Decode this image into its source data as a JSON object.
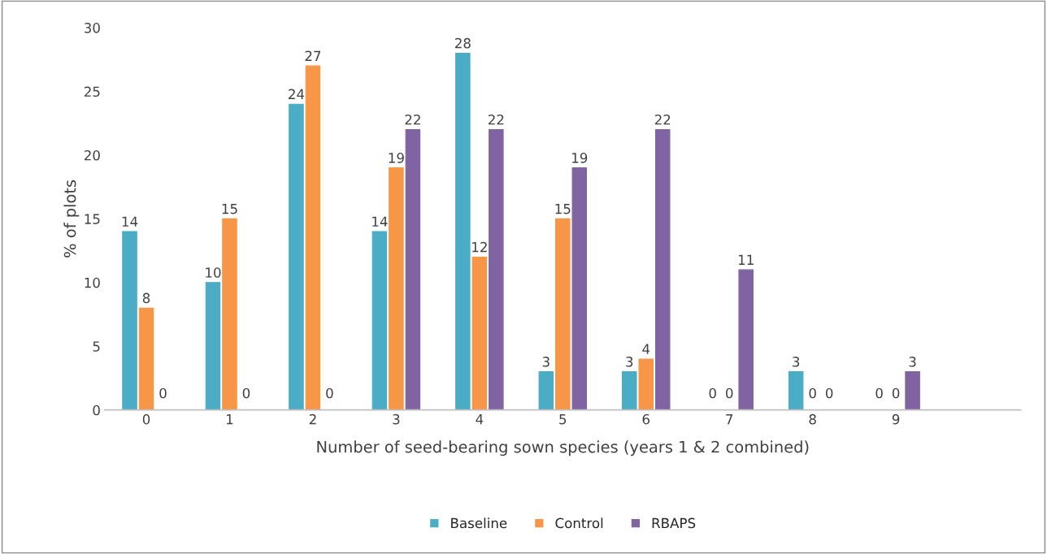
{
  "chart_data": {
    "type": "bar",
    "xlabel": "Number of seed-bearing sown species (years 1 & 2 combined)",
    "ylabel": "% of plots",
    "categories": [
      "0",
      "1",
      "2",
      "3",
      "4",
      "5",
      "6",
      "7",
      "8",
      "9",
      null
    ],
    "series": [
      {
        "name": "Baseline",
        "color": "#4bacc6",
        "values": [
          14,
          10,
          24,
          14,
          28,
          3,
          3,
          0,
          3,
          0,
          null
        ]
      },
      {
        "name": "Control",
        "color": "#f79646",
        "values": [
          8,
          15,
          27,
          19,
          12,
          15,
          4,
          0,
          0,
          0,
          null
        ]
      },
      {
        "name": "RBAPS",
        "color": "#8064a2",
        "values": [
          0,
          0,
          0,
          22,
          22,
          19,
          22,
          11,
          0,
          3,
          null
        ]
      }
    ],
    "ylim": [
      0,
      30
    ],
    "yticks": [
      0,
      5,
      10,
      15,
      20,
      25,
      30
    ],
    "data_labels": true,
    "grid": false,
    "legend": "bottom"
  }
}
